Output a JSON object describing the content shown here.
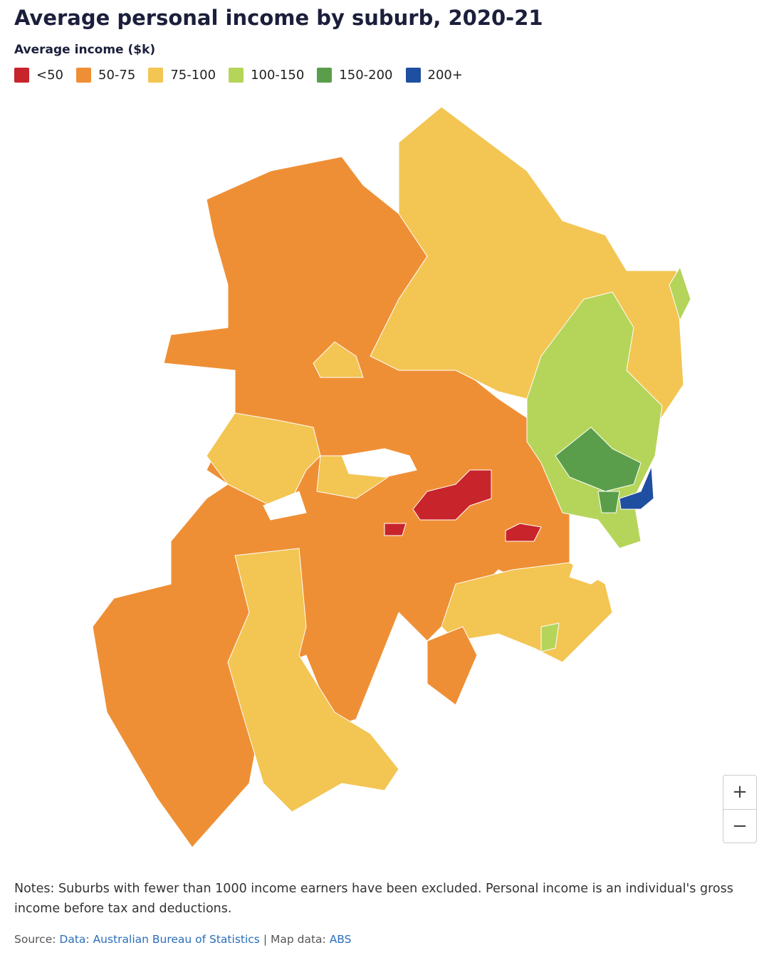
{
  "header": {
    "title": "Average personal income by suburb, 2020-21",
    "legend_title": "Average income ($k)"
  },
  "legend": [
    {
      "label": "<50",
      "color": "#c8242b"
    },
    {
      "label": "50-75",
      "color": "#ef8f35"
    },
    {
      "label": "75-100",
      "color": "#f3c553"
    },
    {
      "label": "100-150",
      "color": "#b5d55a"
    },
    {
      "label": "150-200",
      "color": "#5a9e4b"
    },
    {
      "label": "200+",
      "color": "#1f4fa0"
    }
  ],
  "zoom": {
    "in": "+",
    "out": "−"
  },
  "notes": "Notes: Suburbs with fewer than 1000 income earners have been excluded. Personal income is an individual's gross income before tax and deductions.",
  "source": {
    "label": "Source:",
    "link1": "Data: Australian Bureau of Statistics",
    "separator": "|",
    "label2": "Map data:",
    "link2": "ABS"
  }
}
